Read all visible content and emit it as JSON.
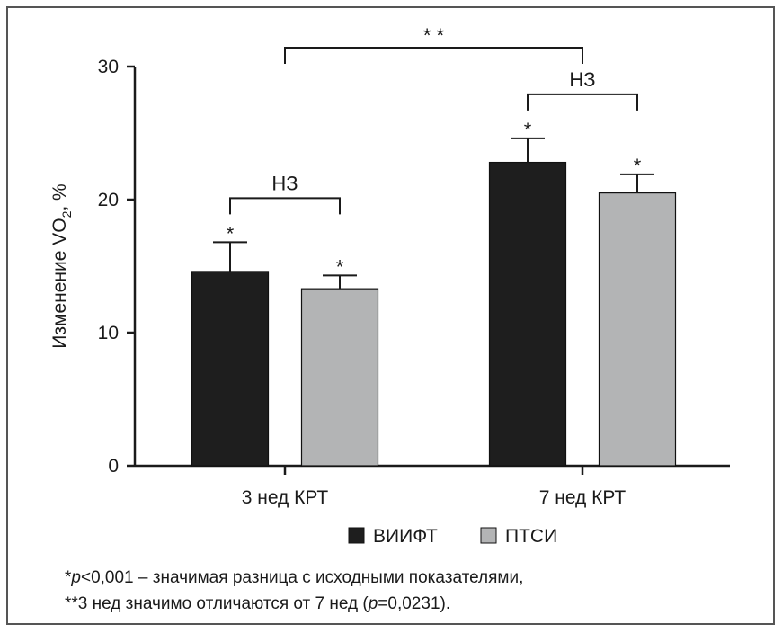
{
  "chart_data": {
    "type": "bar",
    "categories": [
      "3 нед КРТ",
      "7 нед КРТ"
    ],
    "series": [
      {
        "name": "ВИИФТ",
        "color": "#1e1e1e",
        "values": [
          14.6,
          22.8
        ],
        "errors": [
          2.2,
          1.8
        ],
        "marks": [
          "*",
          "*"
        ]
      },
      {
        "name": "ПТСИ",
        "color": "#b3b4b5",
        "values": [
          13.3,
          20.5
        ],
        "errors": [
          1.0,
          1.4
        ],
        "marks": [
          "*",
          "*"
        ]
      }
    ],
    "ylabel_main": "Изменение VO",
    "ylabel_sub": "2",
    "ylabel_tail": ", %",
    "ylim": [
      0,
      30
    ],
    "yticks": [
      0,
      10,
      20,
      30
    ],
    "comparisons": [
      {
        "label": "НЗ",
        "within": 0
      },
      {
        "label": "НЗ",
        "within": 1
      },
      {
        "label": "* *",
        "between": [
          0,
          1
        ]
      }
    ],
    "legend_position": "bottom"
  },
  "footnotes": {
    "line1_star": "*",
    "line1_p": "p",
    "line1_rest": "<0,001 – значимая разница с исходными показателями,",
    "line2_start": "**3 нед значимо отличаются от 7 нед (",
    "line2_p": "p",
    "line2_end": "=0,0231)."
  }
}
